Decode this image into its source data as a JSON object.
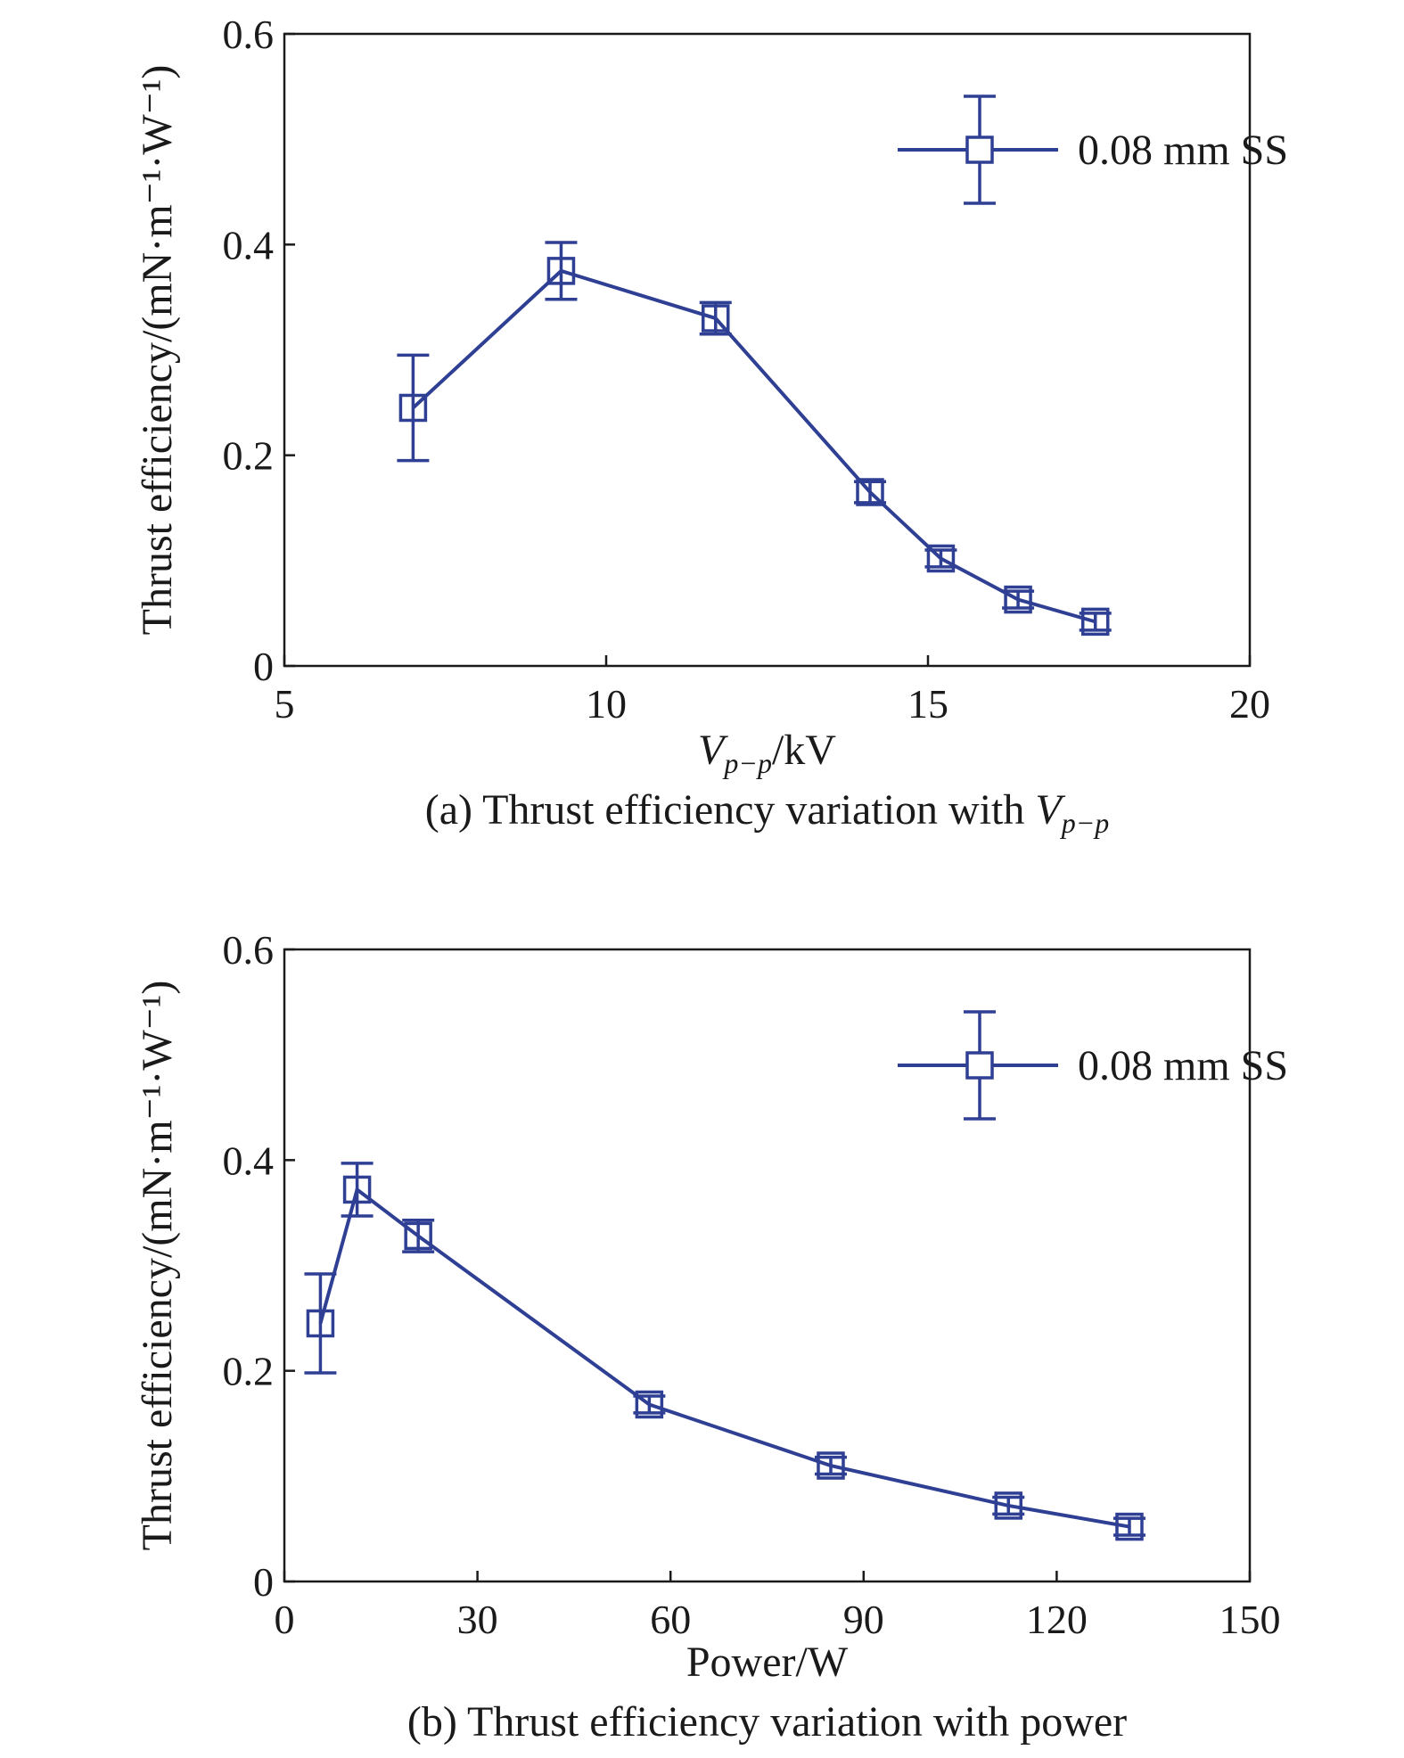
{
  "chart_data": [
    {
      "type": "line",
      "y_label": "Thrust efficiency/(mN·m⁻¹·W⁻¹)",
      "x_label": {
        "symbol": "V",
        "subscript": "p−p",
        "unit": "/kV"
      },
      "caption": {
        "text": "(a) Thrust efficiency variation with ",
        "symbol": "V",
        "subscript": "p−p"
      },
      "xlim": [
        5,
        20
      ],
      "xticks": [
        5,
        10,
        15,
        20
      ],
      "ylim": [
        0,
        0.6
      ],
      "yticks": [
        0,
        0.2,
        0.4,
        0.6
      ],
      "legend": "upper right",
      "series": [
        {
          "name": "0.08 mm SS",
          "color": "#2e3f94",
          "x": [
            7.0,
            9.3,
            11.7,
            14.1,
            15.2,
            16.4,
            17.6
          ],
          "values": [
            0.245,
            0.375,
            0.33,
            0.165,
            0.102,
            0.063,
            0.042
          ],
          "errors": [
            0.05,
            0.027,
            0.015,
            0.01,
            0.008,
            0.008,
            0.008
          ]
        }
      ]
    },
    {
      "type": "line",
      "y_label": "Thrust efficiency/(mN·m⁻¹·W⁻¹)",
      "x_label": {
        "unit": "Power/W"
      },
      "caption": {
        "text": "(b) Thrust efficiency variation with power"
      },
      "xlim": [
        0,
        150
      ],
      "xticks": [
        0,
        30,
        60,
        90,
        120,
        150
      ],
      "ylim": [
        0,
        0.6
      ],
      "yticks": [
        0,
        0.2,
        0.4,
        0.6
      ],
      "legend": "upper right",
      "series": [
        {
          "name": "0.08 mm SS",
          "color": "#2e3f94",
          "x": [
            5.6,
            11.3,
            20.8,
            56.7,
            84.9,
            112.5,
            131.3
          ],
          "values": [
            0.245,
            0.372,
            0.328,
            0.168,
            0.11,
            0.072,
            0.052
          ],
          "errors": [
            0.047,
            0.025,
            0.015,
            0.008,
            0.008,
            0.008,
            0.008
          ]
        }
      ]
    }
  ]
}
